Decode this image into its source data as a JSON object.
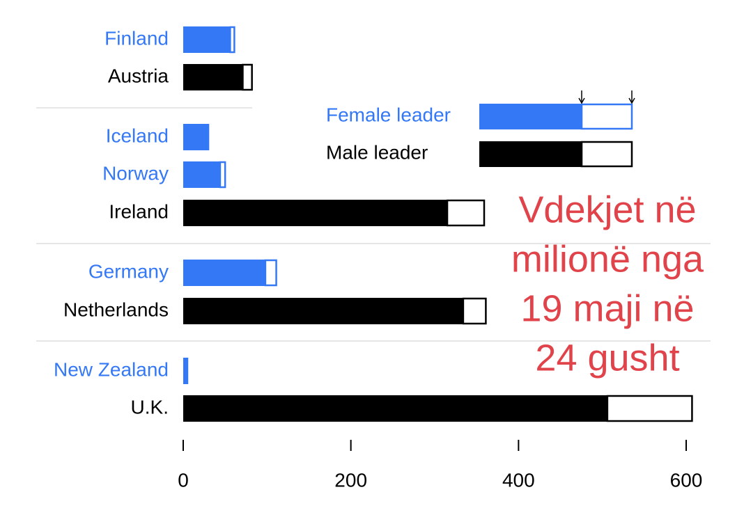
{
  "chart_data": {
    "type": "stacked-bar-horizontal",
    "categories": [
      "Finland",
      "Austria",
      "Iceland",
      "Norway",
      "Ireland",
      "Germany",
      "Netherlands",
      "New Zealand",
      "U.K."
    ],
    "series": [
      {
        "values": [
          56,
          71,
          31,
          44,
          315,
          98,
          334,
          6,
          506
        ]
      },
      {
        "values": [
          5,
          11,
          0,
          6,
          44,
          13,
          27,
          0,
          101
        ]
      }
    ],
    "legend": [
      {
        "label": "Female leader",
        "color": "#3478f6"
      },
      {
        "label": "Male leader",
        "color": "#000000"
      }
    ],
    "category_legend": [
      0,
      1,
      0,
      0,
      1,
      0,
      1,
      0,
      1
    ],
    "annotation": [
      "Vdekjet në",
      "milionë nga",
      "19 maji në",
      "24 gusht"
    ],
    "annotation_color": "#e0434a",
    "xlim": [
      0,
      600
    ],
    "xticks": [
      0,
      200,
      400,
      600
    ]
  }
}
